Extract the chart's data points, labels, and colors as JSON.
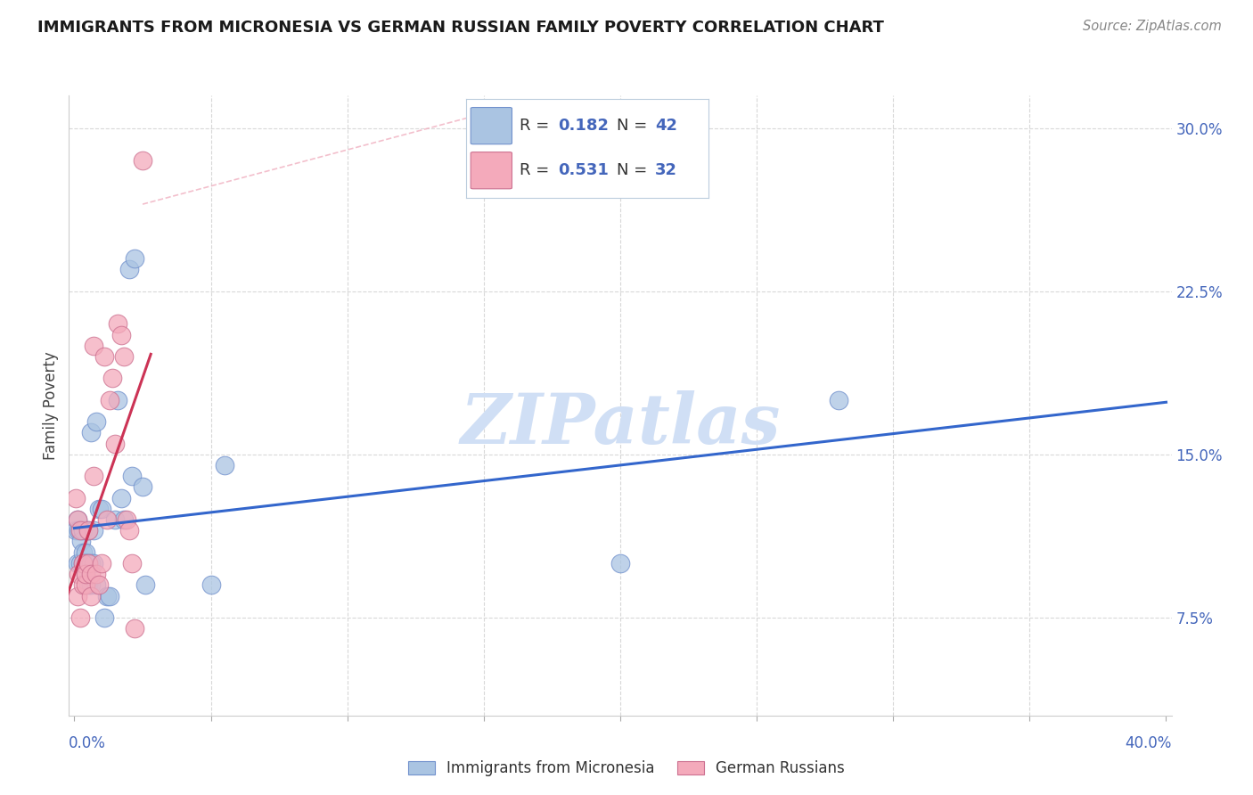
{
  "title": "IMMIGRANTS FROM MICRONESIA VS GERMAN RUSSIAN FAMILY POVERTY CORRELATION CHART",
  "source": "Source: ZipAtlas.com",
  "ylabel": "Family Poverty",
  "ytick_labels": [
    "7.5%",
    "15.0%",
    "22.5%",
    "30.0%"
  ],
  "ytick_values": [
    0.075,
    0.15,
    0.225,
    0.3
  ],
  "xlim": [
    -0.002,
    0.402
  ],
  "ylim": [
    0.03,
    0.315
  ],
  "blue_color": "#aac4e2",
  "pink_color": "#f4aabb",
  "blue_line_color": "#3366cc",
  "pink_line_color": "#cc3355",
  "watermark": "ZIPatlas",
  "watermark_color": "#d0dff5",
  "legend_text_color": "#4466bb",
  "legend_r_blue": "0.182",
  "legend_n_blue": "42",
  "legend_r_pink": "0.531",
  "legend_n_pink": "32",
  "blue_scatter_x": [
    0.0005,
    0.001,
    0.001,
    0.0015,
    0.002,
    0.002,
    0.0025,
    0.003,
    0.003,
    0.003,
    0.004,
    0.004,
    0.004,
    0.004,
    0.005,
    0.005,
    0.005,
    0.006,
    0.006,
    0.006,
    0.007,
    0.007,
    0.008,
    0.008,
    0.009,
    0.01,
    0.011,
    0.012,
    0.013,
    0.015,
    0.016,
    0.017,
    0.018,
    0.02,
    0.021,
    0.022,
    0.025,
    0.026,
    0.05,
    0.055,
    0.2,
    0.28
  ],
  "blue_scatter_y": [
    0.115,
    0.12,
    0.1,
    0.115,
    0.1,
    0.115,
    0.11,
    0.115,
    0.105,
    0.1,
    0.105,
    0.1,
    0.095,
    0.1,
    0.115,
    0.1,
    0.09,
    0.16,
    0.1,
    0.09,
    0.115,
    0.1,
    0.165,
    0.09,
    0.125,
    0.125,
    0.075,
    0.085,
    0.085,
    0.12,
    0.175,
    0.13,
    0.12,
    0.235,
    0.14,
    0.24,
    0.135,
    0.09,
    0.09,
    0.145,
    0.1,
    0.175
  ],
  "pink_scatter_x": [
    0.0005,
    0.001,
    0.001,
    0.0015,
    0.002,
    0.002,
    0.003,
    0.003,
    0.004,
    0.004,
    0.005,
    0.005,
    0.006,
    0.006,
    0.007,
    0.007,
    0.008,
    0.009,
    0.01,
    0.011,
    0.012,
    0.013,
    0.014,
    0.015,
    0.016,
    0.017,
    0.018,
    0.019,
    0.02,
    0.021,
    0.022,
    0.025
  ],
  "pink_scatter_y": [
    0.13,
    0.085,
    0.12,
    0.095,
    0.075,
    0.115,
    0.1,
    0.09,
    0.09,
    0.095,
    0.115,
    0.1,
    0.085,
    0.095,
    0.14,
    0.2,
    0.095,
    0.09,
    0.1,
    0.195,
    0.12,
    0.175,
    0.185,
    0.155,
    0.21,
    0.205,
    0.195,
    0.12,
    0.115,
    0.1,
    0.07,
    0.285
  ],
  "dashed_line_x": [
    0.025,
    0.16
  ],
  "dashed_line_y": [
    0.265,
    0.31
  ],
  "blue_line_x_start": 0.0,
  "blue_line_x_end": 0.4,
  "pink_line_x_start": -0.005,
  "pink_line_x_end": 0.028,
  "bottom_label_blue": "Immigrants from Micronesia",
  "bottom_label_pink": "German Russians"
}
